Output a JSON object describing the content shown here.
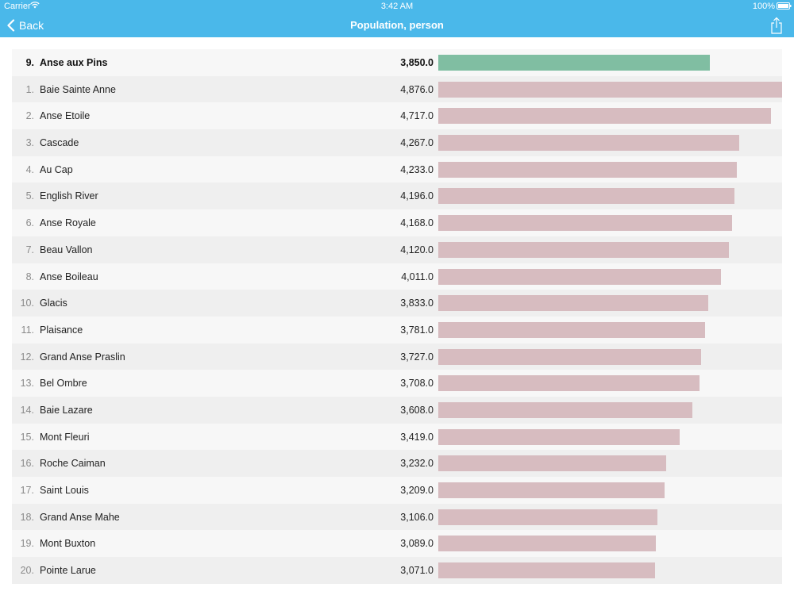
{
  "status": {
    "carrier": "Carrier",
    "time": "3:42 AM",
    "battery": "100%"
  },
  "nav": {
    "back_label": "Back",
    "title": "Population, person"
  },
  "colors": {
    "header": "#4ab8ea",
    "highlight_bar": "#80bea2",
    "bar": "#d7bcc0"
  },
  "chart_data": {
    "type": "bar",
    "title": "Population, person",
    "max_value": 4876,
    "highlight": {
      "rank": "9.",
      "name": "Anse aux Pins",
      "value": 3850,
      "display": "3,850.0"
    },
    "rows": [
      {
        "rank": "1.",
        "name": "Baie Sainte Anne",
        "value": 4876,
        "display": "4,876.0"
      },
      {
        "rank": "2.",
        "name": "Anse Etoile",
        "value": 4717,
        "display": "4,717.0"
      },
      {
        "rank": "3.",
        "name": "Cascade",
        "value": 4267,
        "display": "4,267.0"
      },
      {
        "rank": "4.",
        "name": "Au Cap",
        "value": 4233,
        "display": "4,233.0"
      },
      {
        "rank": "5.",
        "name": "English River",
        "value": 4196,
        "display": "4,196.0"
      },
      {
        "rank": "6.",
        "name": "Anse Royale",
        "value": 4168,
        "display": "4,168.0"
      },
      {
        "rank": "7.",
        "name": "Beau Vallon",
        "value": 4120,
        "display": "4,120.0"
      },
      {
        "rank": "8.",
        "name": "Anse Boileau",
        "value": 4011,
        "display": "4,011.0"
      },
      {
        "rank": "10.",
        "name": "Glacis",
        "value": 3833,
        "display": "3,833.0"
      },
      {
        "rank": "11.",
        "name": "Plaisance",
        "value": 3781,
        "display": "3,781.0"
      },
      {
        "rank": "12.",
        "name": "Grand Anse Praslin",
        "value": 3727,
        "display": "3,727.0"
      },
      {
        "rank": "13.",
        "name": "Bel Ombre",
        "value": 3708,
        "display": "3,708.0"
      },
      {
        "rank": "14.",
        "name": "Baie Lazare",
        "value": 3608,
        "display": "3,608.0"
      },
      {
        "rank": "15.",
        "name": "Mont Fleuri",
        "value": 3419,
        "display": "3,419.0"
      },
      {
        "rank": "16.",
        "name": "Roche Caiman",
        "value": 3232,
        "display": "3,232.0"
      },
      {
        "rank": "17.",
        "name": "Saint Louis",
        "value": 3209,
        "display": "3,209.0"
      },
      {
        "rank": "18.",
        "name": "Grand Anse Mahe",
        "value": 3106,
        "display": "3,106.0"
      },
      {
        "rank": "19.",
        "name": "Mont Buxton",
        "value": 3089,
        "display": "3,089.0"
      },
      {
        "rank": "20.",
        "name": "Pointe Larue",
        "value": 3071,
        "display": "3,071.0"
      }
    ]
  }
}
